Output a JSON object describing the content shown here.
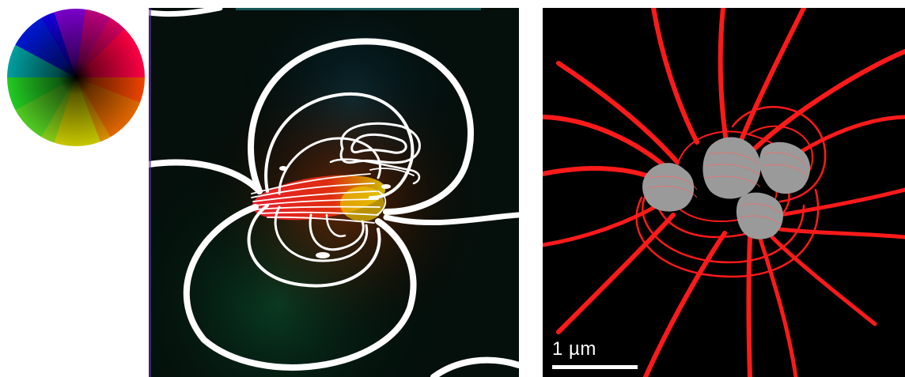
{
  "figure": {
    "color_wheel": {
      "icon": "hue-color-wheel-icon"
    },
    "holography_panel": {
      "background": "#000000",
      "contour_color": "#ffffff"
    },
    "stray_field_panel": {
      "background": "#000000",
      "contour_color": "#ff1a1a",
      "particle_color": "#9a9a9a"
    },
    "scale_bar": {
      "label": "1 µm",
      "color": "#ffffff"
    }
  }
}
